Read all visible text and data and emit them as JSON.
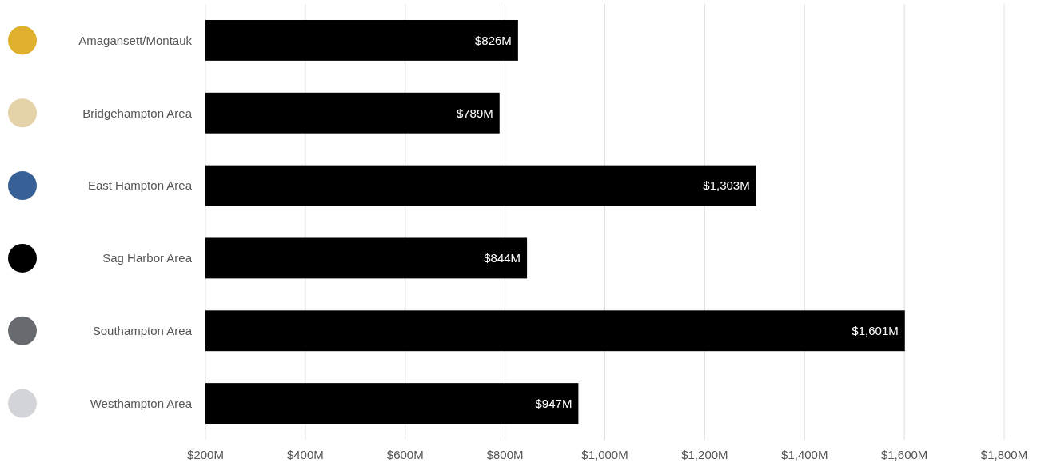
{
  "chart_data": {
    "type": "bar",
    "orientation": "horizontal",
    "categories": [
      "Amagansett/Montauk",
      "Bridgehampton Area",
      "East Hampton Area",
      "Sag Harbor Area",
      "Southampton Area",
      "Westhampton Area"
    ],
    "values": [
      826,
      789,
      1303,
      844,
      1601,
      947
    ],
    "value_labels": [
      "$826M",
      "$789M",
      "$1,303M",
      "$844M",
      "$1,601M",
      "$947M"
    ],
    "color": "#000000",
    "xlim": [
      200,
      1800
    ],
    "xticks": [
      {
        "value": 200,
        "label": "$200M"
      },
      {
        "value": 400,
        "label": "$400M"
      },
      {
        "value": 600,
        "label": "$600M"
      },
      {
        "value": 800,
        "label": "$800M"
      },
      {
        "value": 1000,
        "label": "$1,000M"
      },
      {
        "value": 1200,
        "label": "$1,200M"
      },
      {
        "value": 1400,
        "label": "$1,400M"
      },
      {
        "value": 1600,
        "label": "$1,600M"
      },
      {
        "value": 1800,
        "label": "$1,800M"
      }
    ],
    "grid": "x"
  }
}
